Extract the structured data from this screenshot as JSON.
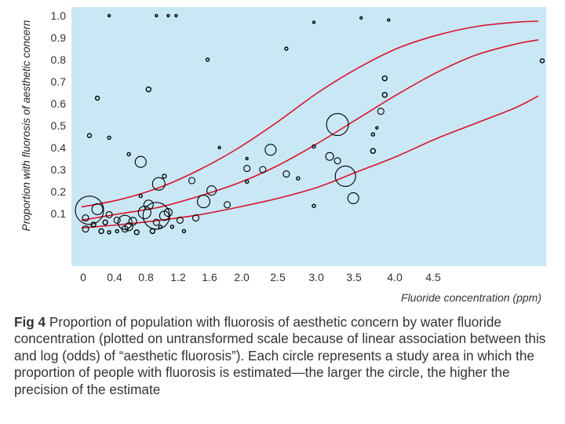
{
  "chart_data": {
    "type": "scatter",
    "title": "",
    "xlabel": "Fluoride concentration (ppm)",
    "ylabel": "Proportion with fluorosis of aesthetic concern",
    "x_ticks": [
      "0",
      "0.4",
      "0.8",
      "1.2",
      "1.6",
      "2.0",
      "2.5",
      "3.0",
      "3.5",
      "4.0",
      "4.5"
    ],
    "y_ticks": [
      "0.1",
      "0.2",
      "0.3",
      "0.4",
      "0.5",
      "0.6",
      "0.7",
      "0.8",
      "0.9",
      "1.0"
    ],
    "xlim": [
      0,
      5.9
    ],
    "ylim": [
      -0.1,
      1.0
    ],
    "grid": false,
    "colors": {
      "background": "#c9e7f5",
      "curve": "#d9142b",
      "circle": "#000000"
    },
    "curves": [
      {
        "points": [
          [
            0,
            0.13
          ],
          [
            0.5,
            0.165
          ],
          [
            1.0,
            0.22
          ],
          [
            1.5,
            0.3
          ],
          [
            2.0,
            0.4
          ],
          [
            2.5,
            0.52
          ],
          [
            3.0,
            0.65
          ],
          [
            3.5,
            0.76
          ],
          [
            4.0,
            0.85
          ],
          [
            4.5,
            0.91
          ],
          [
            5.0,
            0.95
          ],
          [
            5.5,
            0.97
          ],
          [
            5.8,
            0.975
          ]
        ]
      },
      {
        "points": [
          [
            0,
            0.07
          ],
          [
            0.5,
            0.1
          ],
          [
            1.0,
            0.13
          ],
          [
            1.5,
            0.18
          ],
          [
            2.0,
            0.24
          ],
          [
            2.5,
            0.32
          ],
          [
            3.0,
            0.42
          ],
          [
            3.5,
            0.53
          ],
          [
            4.0,
            0.64
          ],
          [
            4.5,
            0.74
          ],
          [
            5.0,
            0.82
          ],
          [
            5.5,
            0.87
          ],
          [
            5.8,
            0.89
          ]
        ]
      },
      {
        "points": [
          [
            0,
            0.035
          ],
          [
            0.5,
            0.05
          ],
          [
            1.0,
            0.07
          ],
          [
            1.5,
            0.095
          ],
          [
            2.0,
            0.13
          ],
          [
            2.5,
            0.17
          ],
          [
            3.0,
            0.22
          ],
          [
            3.5,
            0.29
          ],
          [
            4.0,
            0.36
          ],
          [
            4.5,
            0.44
          ],
          [
            5.0,
            0.51
          ],
          [
            5.5,
            0.58
          ],
          [
            5.8,
            0.635
          ]
        ]
      }
    ],
    "points": [
      {
        "x": 0.1,
        "y": 0.115,
        "size": 18
      },
      {
        "x": 0.95,
        "y": 0.09,
        "size": 17
      },
      {
        "x": 3.35,
        "y": 0.27,
        "size": 13
      },
      {
        "x": 3.25,
        "y": 0.505,
        "size": 14
      },
      {
        "x": 0.55,
        "y": 0.06,
        "size": 9
      },
      {
        "x": 0.8,
        "y": 0.105,
        "size": 8
      },
      {
        "x": 0.2,
        "y": 0.12,
        "size": 7
      },
      {
        "x": 0.98,
        "y": 0.235,
        "size": 8
      },
      {
        "x": 1.55,
        "y": 0.155,
        "size": 8
      },
      {
        "x": 2.4,
        "y": 0.39,
        "size": 7
      },
      {
        "x": 0.75,
        "y": 0.335,
        "size": 7
      },
      {
        "x": 3.45,
        "y": 0.17,
        "size": 7
      },
      {
        "x": 1.65,
        "y": 0.205,
        "size": 6
      },
      {
        "x": 1.05,
        "y": 0.09,
        "size": 6
      },
      {
        "x": 1.1,
        "y": 0.105,
        "size": 5
      },
      {
        "x": 0.85,
        "y": 0.14,
        "size": 6
      },
      {
        "x": 0.65,
        "y": 0.065,
        "size": 5
      },
      {
        "x": 0.6,
        "y": 0.04,
        "size": 5
      },
      {
        "x": 0.35,
        "y": 0.095,
        "size": 4
      },
      {
        "x": 0.45,
        "y": 0.07,
        "size": 4
      },
      {
        "x": 0.55,
        "y": 0.03,
        "size": 4
      },
      {
        "x": 0.05,
        "y": 0.08,
        "size": 4
      },
      {
        "x": 0.05,
        "y": 0.03,
        "size": 4
      },
      {
        "x": 0.15,
        "y": 0.05,
        "size": 3
      },
      {
        "x": 0.25,
        "y": 0.02,
        "size": 3
      },
      {
        "x": 0.3,
        "y": 0.06,
        "size": 3
      },
      {
        "x": 0.7,
        "y": 0.015,
        "size": 3
      },
      {
        "x": 0.9,
        "y": 0.02,
        "size": 3
      },
      {
        "x": 0.95,
        "y": 0.06,
        "size": 4
      },
      {
        "x": 1.25,
        "y": 0.07,
        "size": 4
      },
      {
        "x": 1.45,
        "y": 0.08,
        "size": 4
      },
      {
        "x": 1.4,
        "y": 0.25,
        "size": 4
      },
      {
        "x": 1.85,
        "y": 0.14,
        "size": 4
      },
      {
        "x": 2.3,
        "y": 0.3,
        "size": 4
      },
      {
        "x": 2.1,
        "y": 0.305,
        "size": 4
      },
      {
        "x": 2.6,
        "y": 0.28,
        "size": 4
      },
      {
        "x": 3.15,
        "y": 0.36,
        "size": 5
      },
      {
        "x": 3.25,
        "y": 0.34,
        "size": 4
      },
      {
        "x": 3.7,
        "y": 0.385,
        "size": 3
      },
      {
        "x": 3.8,
        "y": 0.565,
        "size": 4
      },
      {
        "x": 3.85,
        "y": 0.64,
        "size": 3
      },
      {
        "x": 3.85,
        "y": 0.715,
        "size": 3
      },
      {
        "x": 0.85,
        "y": 0.665,
        "size": 3
      },
      {
        "x": 0.2,
        "y": 0.625,
        "size": 2.5
      },
      {
        "x": 0.1,
        "y": 0.455,
        "size": 2.5
      },
      {
        "x": 0.35,
        "y": 0.445,
        "size": 2
      },
      {
        "x": 0.6,
        "y": 0.37,
        "size": 2
      },
      {
        "x": 1.6,
        "y": 0.8,
        "size": 2
      },
      {
        "x": 2.6,
        "y": 0.85,
        "size": 2
      },
      {
        "x": 1.05,
        "y": 0.27,
        "size": 2.5
      },
      {
        "x": 1.75,
        "y": 0.4,
        "size": 1.5
      },
      {
        "x": 2.1,
        "y": 0.35,
        "size": 1.5
      },
      {
        "x": 2.1,
        "y": 0.245,
        "size": 2
      },
      {
        "x": 2.95,
        "y": 0.405,
        "size": 2
      },
      {
        "x": 2.95,
        "y": 0.135,
        "size": 2
      },
      {
        "x": 3.7,
        "y": 0.46,
        "size": 2
      },
      {
        "x": 3.75,
        "y": 0.49,
        "size": 1.5
      },
      {
        "x": 5.85,
        "y": 0.795,
        "size": 2.5
      },
      {
        "x": 0.35,
        "y": 1.0,
        "size": 1.5
      },
      {
        "x": 0.95,
        "y": 1.0,
        "size": 1.5
      },
      {
        "x": 1.1,
        "y": 1.0,
        "size": 1.5
      },
      {
        "x": 1.2,
        "y": 1.0,
        "size": 1.5
      },
      {
        "x": 2.95,
        "y": 0.97,
        "size": 1.5
      },
      {
        "x": 3.55,
        "y": 0.99,
        "size": 1.5
      },
      {
        "x": 3.9,
        "y": 0.98,
        "size": 1.5
      },
      {
        "x": 2.75,
        "y": 0.26,
        "size": 2
      },
      {
        "x": 1.0,
        "y": 0.04,
        "size": 2
      },
      {
        "x": 1.3,
        "y": 0.02,
        "size": 2
      },
      {
        "x": 0.45,
        "y": 0.02,
        "size": 2
      },
      {
        "x": 0.75,
        "y": 0.18,
        "size": 2
      },
      {
        "x": 0.35,
        "y": 0.015,
        "size": 2
      },
      {
        "x": 1.15,
        "y": 0.04,
        "size": 2
      }
    ]
  },
  "caption": {
    "label": "Fig 4",
    "text": "Proportion of population with fluorosis of aesthetic concern by water fluoride concentration (plotted on untransformed scale because of linear association between this and log (odds) of “aesthetic fluorosis”). Each circle represents a study area in which the proportion of people with fluorosis is estimated—the larger the circle, the higher the precision of the estimate"
  }
}
